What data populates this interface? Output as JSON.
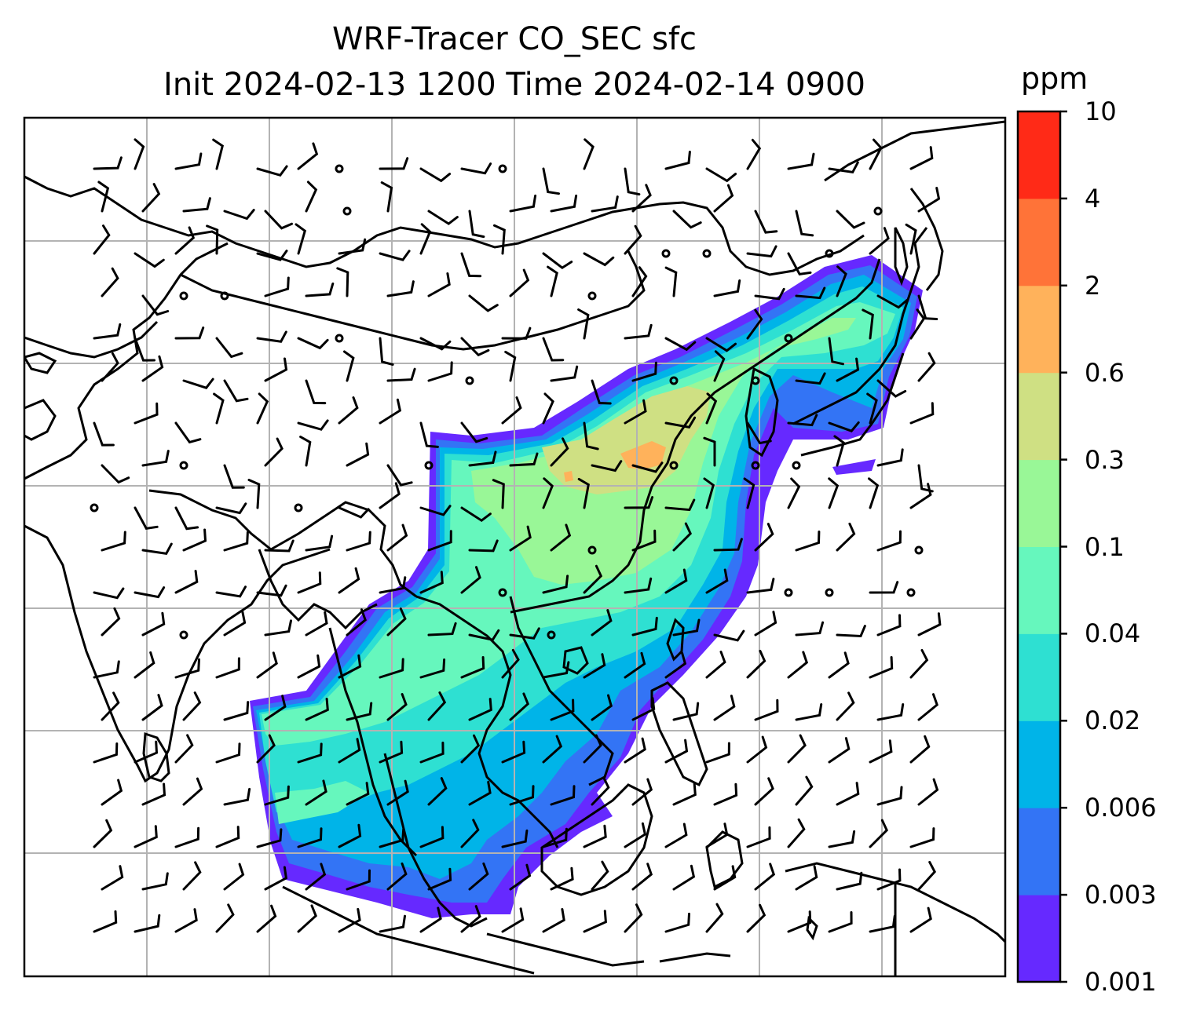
{
  "title": {
    "line1": "WRF-Tracer CO_SEC sfc",
    "line2": "Init 2024-02-13 1200 Time 2024-02-14 0900"
  },
  "colorbar": {
    "unit": "ppm",
    "levels": [
      "0.001",
      "0.003",
      "0.006",
      "0.02",
      "0.04",
      "0.1",
      "0.3",
      "0.6",
      "2",
      "4",
      "10"
    ],
    "colors": [
      "#6629ff",
      "#3374f5",
      "#00b4e8",
      "#2ee0d2",
      "#66f7bd",
      "#99f797",
      "#cfe083",
      "#ffb25b",
      "#ff7338",
      "#ff2a17"
    ]
  },
  "map": {
    "gridlines": true,
    "gridline_color": "#b3b3b3",
    "coastline_color": "#000000",
    "field_name": "CO_SEC",
    "level": "sfc",
    "wind_barbs": true
  }
}
